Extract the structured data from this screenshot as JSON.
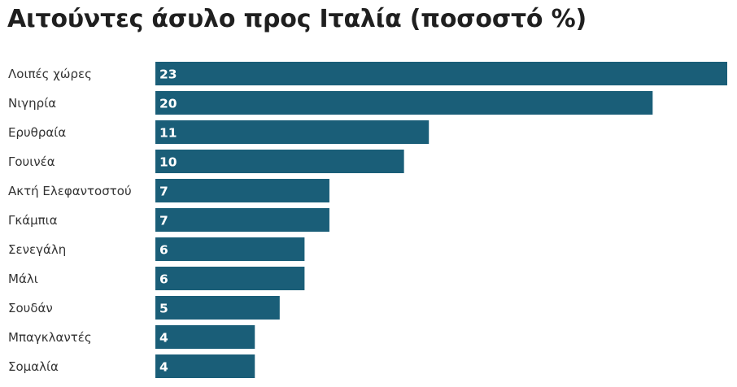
{
  "chart_data": {
    "type": "bar",
    "orientation": "horizontal",
    "title": "Αιτούντες άσυλο προς Ιταλία (ποσοστό %)",
    "categories": [
      "Λοιπές χώρες",
      "Νιγηρία",
      "Ερυθραία",
      "Γουινέα",
      "Ακτή Ελεφαντοστού",
      "Γκάμπια",
      "Σενεγάλη",
      "Μάλι",
      "Σουδάν",
      "Μπαγκλαντές",
      "Σομαλία"
    ],
    "values": [
      23,
      20,
      11,
      10,
      7,
      7,
      6,
      6,
      5,
      4,
      4
    ],
    "xlim": [
      0,
      23
    ],
    "grid": false,
    "legend": "none",
    "bar_color": "#1a5e78",
    "value_label_color": "#ffffff"
  }
}
